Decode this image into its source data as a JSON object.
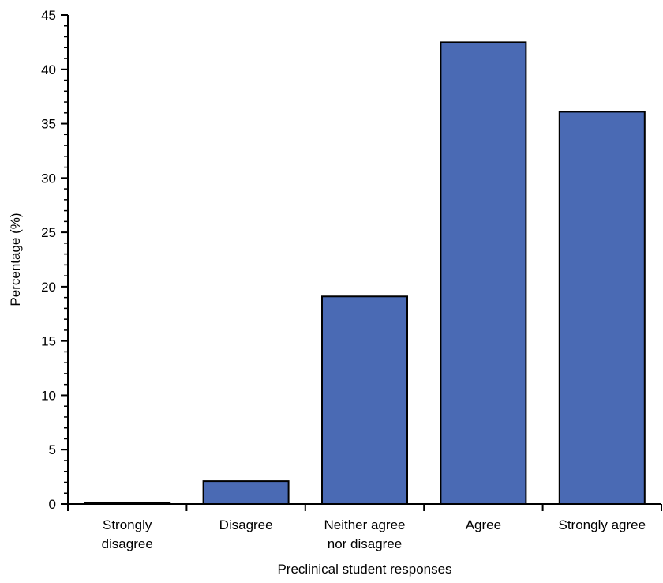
{
  "chart_data": {
    "type": "bar",
    "categories": [
      [
        "Strongly",
        "disagree"
      ],
      [
        "Disagree"
      ],
      [
        "Neither agree",
        "nor disagree"
      ],
      [
        "Agree"
      ],
      [
        "Strongly agree"
      ]
    ],
    "values": [
      0.1,
      2.1,
      19.1,
      42.5,
      36.1
    ],
    "xlabel": "Preclinical student responses",
    "ylabel": "Percentage (%)",
    "ylim": [
      0,
      45
    ],
    "yticks": [
      "0",
      "5",
      "10",
      "15",
      "20",
      "25",
      "30",
      "35",
      "40",
      "45"
    ],
    "grid": false,
    "bar_color": "#4A6AB4",
    "bar_edge_color": "#000000"
  }
}
